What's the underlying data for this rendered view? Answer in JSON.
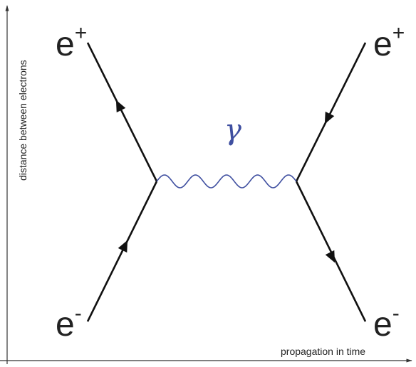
{
  "axes": {
    "x_label": "propagation in time",
    "y_label": "distance between electrons"
  },
  "particles": {
    "top_left": {
      "base": "e",
      "sup": "+"
    },
    "top_right": {
      "base": "e",
      "sup": "+"
    },
    "bottom_left": {
      "base": "e",
      "sup": "-"
    },
    "bottom_right": {
      "base": "e",
      "sup": "-"
    }
  },
  "photon": {
    "label": "γ",
    "color": "#3f4fa0"
  },
  "colors": {
    "line": "#111111",
    "axis": "#333333"
  }
}
